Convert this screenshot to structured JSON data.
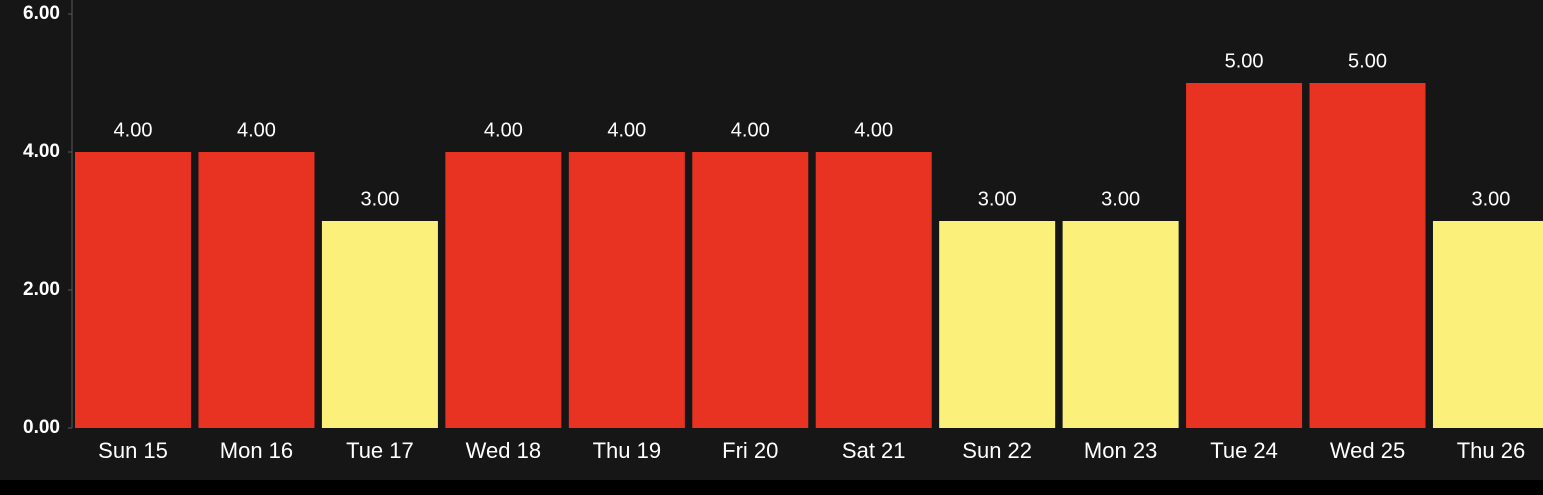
{
  "chart_data": {
    "type": "bar",
    "categories": [
      "Sun 15",
      "Mon 16",
      "Tue 17",
      "Wed 18",
      "Thu 19",
      "Fri 20",
      "Sat 21",
      "Sun 22",
      "Mon 23",
      "Tue 24",
      "Wed 25",
      "Thu 26"
    ],
    "values": [
      4,
      4,
      3,
      4,
      4,
      4,
      4,
      3,
      3,
      5,
      5,
      3
    ],
    "value_labels": [
      "4.00",
      "4.00",
      "3.00",
      "4.00",
      "4.00",
      "4.00",
      "4.00",
      "3.00",
      "3.00",
      "5.00",
      "5.00",
      "3.00"
    ],
    "colors": [
      "#e83322",
      "#e83322",
      "#fbf07a",
      "#e83322",
      "#e83322",
      "#e83322",
      "#e83322",
      "#fbf07a",
      "#fbf07a",
      "#e83322",
      "#e83322",
      "#fbf07a"
    ],
    "ylim": [
      0,
      6
    ],
    "yticks": [
      {
        "value": 0,
        "label": "0.00"
      },
      {
        "value": 2,
        "label": "2.00"
      },
      {
        "value": 4,
        "label": "4.00"
      },
      {
        "value": 6,
        "label": "6.00"
      }
    ],
    "grid": false
  }
}
